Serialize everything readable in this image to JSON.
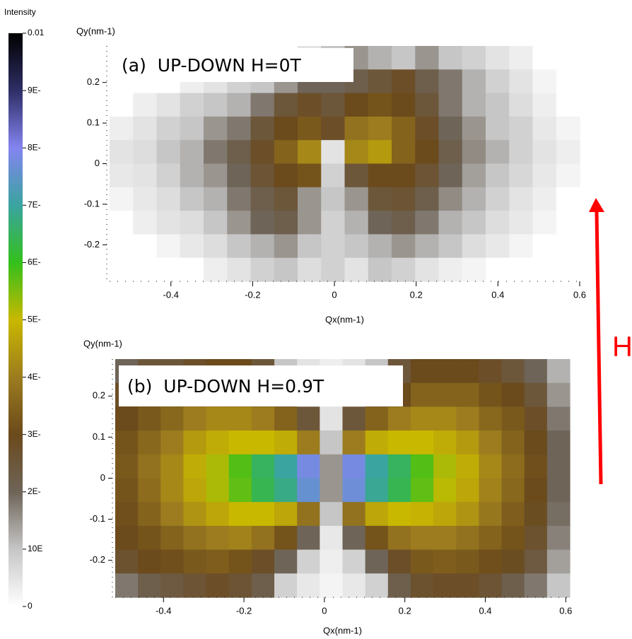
{
  "colorbar": {
    "title": "Intensity",
    "zlim": [
      0,
      0.01
    ],
    "ticks": [
      {
        "value": 0.01,
        "label": "0.01"
      },
      {
        "value": 0.009,
        "label": "9E-"
      },
      {
        "value": 0.008,
        "label": "8E-"
      },
      {
        "value": 0.007,
        "label": "7E-"
      },
      {
        "value": 0.006,
        "label": "6E-"
      },
      {
        "value": 0.005,
        "label": "5E-"
      },
      {
        "value": 0.004,
        "label": "4E-"
      },
      {
        "value": 0.003,
        "label": "3E-"
      },
      {
        "value": 0.002,
        "label": "2E-"
      },
      {
        "value": 0.001,
        "label": "10E"
      },
      0
    ],
    "colors": [
      "#ffffff",
      "#c6c6c6",
      "#6e6458",
      "#6b4a1c",
      "#9c7c1e",
      "#c9b800",
      "#34c01c",
      "#3aa4a0",
      "#8484f0",
      "#2e2e66",
      "#000000"
    ]
  },
  "chart_data": [
    {
      "type": "heatmap",
      "title": "(a)  UP-DOWN H=0T",
      "x_label": "Qx(nm-1)",
      "y_label": "Qy(nm-1)",
      "xlim": [
        -0.55,
        0.6
      ],
      "ylim": [
        -0.29,
        0.29
      ],
      "xticks": [
        -0.4,
        -0.2,
        0,
        0.2,
        0.4,
        0.6
      ],
      "yticks": [
        -0.2,
        -0.1,
        0,
        0.1,
        0.2
      ],
      "z": [
        [
          0,
          0,
          0,
          0,
          0,
          0,
          0,
          0,
          0.0005,
          0.001,
          0.0015,
          0.0012,
          0.001,
          0.0015,
          0.001,
          0.0008,
          0.0005,
          0.0003,
          0,
          0
        ],
        [
          0,
          0,
          0,
          0.0003,
          0.0005,
          0.0008,
          0.001,
          0.0015,
          0.002,
          0.002,
          0.0022,
          0.0025,
          0.0028,
          0.0022,
          0.0018,
          0.0012,
          0.0008,
          0.0005,
          0.0002,
          0
        ],
        [
          0,
          0.0003,
          0.0005,
          0.0008,
          0.001,
          0.0012,
          0.0018,
          0.0025,
          0.0028,
          0.0025,
          0.003,
          0.0032,
          0.003,
          0.0025,
          0.0018,
          0.0012,
          0.001,
          0.0006,
          0.0003,
          0
        ],
        [
          0.0003,
          0.0005,
          0.0008,
          0.001,
          0.0015,
          0.0018,
          0.0025,
          0.003,
          0.0033,
          0.0028,
          0.0038,
          0.004,
          0.0035,
          0.0028,
          0.002,
          0.0015,
          0.001,
          0.0008,
          0.0004,
          0.0002
        ],
        [
          0.0005,
          0.0006,
          0.001,
          0.0012,
          0.0018,
          0.0022,
          0.0028,
          0.0035,
          0.0042,
          0.0005,
          0.0042,
          0.0045,
          0.0035,
          0.003,
          0.0022,
          0.0016,
          0.0012,
          0.0008,
          0.0005,
          0.0003
        ],
        [
          0.0004,
          0.0005,
          0.0008,
          0.0012,
          0.0015,
          0.002,
          0.0026,
          0.003,
          0.0032,
          0.0008,
          0.0025,
          0.003,
          0.003,
          0.0026,
          0.002,
          0.0014,
          0.001,
          0.0007,
          0.0004,
          0.0002
        ],
        [
          0.0002,
          0.0004,
          0.0006,
          0.001,
          0.0012,
          0.0018,
          0.0022,
          0.0025,
          0.0015,
          0.001,
          0.0015,
          0.0025,
          0.0026,
          0.0022,
          0.0016,
          0.0012,
          0.0008,
          0.0005,
          0.0003,
          0
        ],
        [
          0,
          0.0003,
          0.0005,
          0.0006,
          0.001,
          0.0015,
          0.002,
          0.0022,
          0.0015,
          0.0008,
          0.0012,
          0.002,
          0.0022,
          0.0018,
          0.0012,
          0.001,
          0.0006,
          0.0004,
          0.0002,
          0
        ],
        [
          0,
          0,
          0.0002,
          0.0004,
          0.0006,
          0.001,
          0.0012,
          0.0015,
          0.001,
          0.0008,
          0.001,
          0.0012,
          0.0015,
          0.0012,
          0.001,
          0.0006,
          0.0004,
          0.0002,
          0,
          0
        ],
        [
          0,
          0,
          0,
          0,
          0.0003,
          0.0005,
          0.0008,
          0.001,
          0.0006,
          0.0008,
          0.0005,
          0.001,
          0.0008,
          0.0005,
          0.0003,
          0.0002,
          0,
          0,
          0,
          0
        ]
      ]
    },
    {
      "type": "heatmap",
      "title": "(b)  UP-DOWN H=0.9T",
      "x_label": "Qx(nm-1)",
      "y_label": "Qy(nm-1)",
      "xlim": [
        -0.52,
        0.61
      ],
      "ylim": [
        -0.29,
        0.29
      ],
      "xticks": [
        -0.4,
        -0.2,
        0,
        0.2,
        0.4,
        0.6
      ],
      "yticks": [
        -0.2,
        -0.1,
        0,
        0.1,
        0.2
      ],
      "z": [
        [
          0.002,
          0.0025,
          0.0025,
          0.0028,
          0.003,
          0.003,
          0.0025,
          0.001,
          0.0005,
          0.0003,
          0.0005,
          0.001,
          0.0025,
          0.003,
          0.003,
          0.003,
          0.0028,
          0.0025,
          0.002,
          0.0012
        ],
        [
          0.0028,
          0.003,
          0.0032,
          0.0035,
          0.0035,
          0.0033,
          0.003,
          0.0022,
          0.001,
          0.0003,
          0.001,
          0.0022,
          0.003,
          0.0035,
          0.0035,
          0.0035,
          0.0032,
          0.003,
          0.0025,
          0.0015
        ],
        [
          0.003,
          0.0033,
          0.0036,
          0.004,
          0.0042,
          0.0042,
          0.004,
          0.0035,
          0.0025,
          0.0005,
          0.0025,
          0.0035,
          0.004,
          0.0042,
          0.0042,
          0.004,
          0.0036,
          0.0033,
          0.0028,
          0.0018
        ],
        [
          0.0032,
          0.0036,
          0.004,
          0.0045,
          0.0048,
          0.005,
          0.005,
          0.0048,
          0.004,
          0.001,
          0.004,
          0.0048,
          0.005,
          0.005,
          0.0048,
          0.0045,
          0.004,
          0.0035,
          0.003,
          0.002
        ],
        [
          0.0033,
          0.0038,
          0.0042,
          0.0048,
          0.0052,
          0.0058,
          0.0065,
          0.007,
          0.0078,
          0.0015,
          0.0078,
          0.007,
          0.0065,
          0.0058,
          0.0052,
          0.0048,
          0.0042,
          0.0037,
          0.0031,
          0.002
        ],
        [
          0.0032,
          0.0037,
          0.0042,
          0.0047,
          0.0052,
          0.0057,
          0.0064,
          0.0068,
          0.0076,
          0.0015,
          0.0077,
          0.0069,
          0.0064,
          0.0057,
          0.0051,
          0.0047,
          0.0041,
          0.0036,
          0.003,
          0.002
        ],
        [
          0.0031,
          0.0035,
          0.004,
          0.0044,
          0.0047,
          0.005,
          0.005,
          0.0047,
          0.0038,
          0.001,
          0.0038,
          0.0047,
          0.005,
          0.0049,
          0.0047,
          0.0044,
          0.0039,
          0.0034,
          0.0029,
          0.0019
        ],
        [
          0.003,
          0.0032,
          0.0035,
          0.0038,
          0.004,
          0.0041,
          0.0038,
          0.0032,
          0.002,
          0.0004,
          0.002,
          0.0032,
          0.0038,
          0.004,
          0.004,
          0.0038,
          0.0035,
          0.0032,
          0.0027,
          0.0017
        ],
        [
          0.0027,
          0.003,
          0.0031,
          0.0033,
          0.0034,
          0.0032,
          0.0028,
          0.002,
          0.0008,
          0.0003,
          0.0008,
          0.002,
          0.0028,
          0.0033,
          0.0034,
          0.0033,
          0.0031,
          0.0029,
          0.0024,
          0.0014
        ],
        [
          0.0018,
          0.0022,
          0.0024,
          0.0026,
          0.0028,
          0.0026,
          0.0022,
          0.0008,
          0.0004,
          0.0002,
          0.0004,
          0.0008,
          0.0022,
          0.0027,
          0.0028,
          0.0028,
          0.0026,
          0.0022,
          0.0018,
          0.001
        ]
      ]
    }
  ],
  "annotation": {
    "text": "H",
    "color": "#ff0000"
  }
}
